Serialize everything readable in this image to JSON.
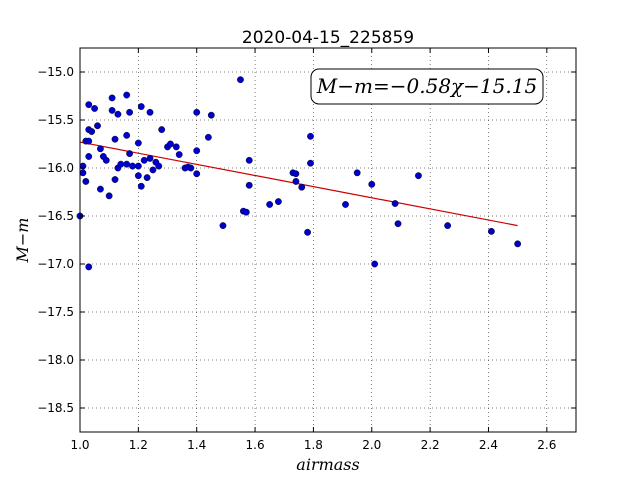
{
  "chart_data": {
    "type": "scatter",
    "title": "2020-04-15_225859",
    "xlabel": "airmass",
    "ylabel": "M−m",
    "annotation": "M−m=−0.58χ−15.15",
    "xlim": [
      1.0,
      2.7
    ],
    "ylim": [
      -18.75,
      -14.75
    ],
    "y_inverted": true,
    "grid": true,
    "x_ticks": [
      1.0,
      1.2,
      1.4,
      1.6,
      1.8,
      2.0,
      2.2,
      2.4,
      2.6
    ],
    "x_tick_labels": [
      "1.0",
      "1.2",
      "1.4",
      "1.6",
      "1.8",
      "2.0",
      "2.2",
      "2.4",
      "2.6"
    ],
    "y_ticks": [
      -15.0,
      -15.5,
      -16.0,
      -16.5,
      -17.0,
      -17.5,
      -18.0,
      -18.5
    ],
    "y_tick_labels": [
      "−15.0",
      "−15.5",
      "−16.0",
      "−16.5",
      "−17.0",
      "−17.5",
      "−18.0",
      "−18.5"
    ],
    "point_color": "#0000cc",
    "fit_color": "#cc0000",
    "fit": {
      "slope": -0.58,
      "intercept": -15.15,
      "x_range": [
        1.0,
        2.5
      ]
    },
    "points": [
      [
        1.0,
        -16.5
      ],
      [
        1.01,
        -16.05
      ],
      [
        1.01,
        -15.98
      ],
      [
        1.02,
        -15.72
      ],
      [
        1.02,
        -16.14
      ],
      [
        1.03,
        -17.03
      ],
      [
        1.03,
        -15.34
      ],
      [
        1.03,
        -15.6
      ],
      [
        1.03,
        -15.72
      ],
      [
        1.03,
        -15.88
      ],
      [
        1.04,
        -15.62
      ],
      [
        1.05,
        -15.38
      ],
      [
        1.06,
        -15.56
      ],
      [
        1.07,
        -15.8
      ],
      [
        1.07,
        -16.22
      ],
      [
        1.08,
        -15.88
      ],
      [
        1.09,
        -15.92
      ],
      [
        1.1,
        -16.29
      ],
      [
        1.11,
        -15.27
      ],
      [
        1.11,
        -15.4
      ],
      [
        1.12,
        -15.7
      ],
      [
        1.12,
        -16.12
      ],
      [
        1.13,
        -15.44
      ],
      [
        1.13,
        -16.0
      ],
      [
        1.14,
        -15.96
      ],
      [
        1.16,
        -15.96
      ],
      [
        1.16,
        -15.66
      ],
      [
        1.16,
        -15.24
      ],
      [
        1.17,
        -15.85
      ],
      [
        1.17,
        -15.42
      ],
      [
        1.18,
        -15.98
      ],
      [
        1.2,
        -15.74
      ],
      [
        1.2,
        -15.98
      ],
      [
        1.2,
        -16.08
      ],
      [
        1.21,
        -15.36
      ],
      [
        1.21,
        -16.19
      ],
      [
        1.22,
        -15.92
      ],
      [
        1.23,
        -16.1
      ],
      [
        1.24,
        -15.42
      ],
      [
        1.24,
        -15.9
      ],
      [
        1.25,
        -16.02
      ],
      [
        1.26,
        -15.94
      ],
      [
        1.27,
        -15.98
      ],
      [
        1.28,
        -15.6
      ],
      [
        1.3,
        -15.78
      ],
      [
        1.31,
        -15.75
      ],
      [
        1.33,
        -15.78
      ],
      [
        1.34,
        -15.86
      ],
      [
        1.36,
        -16.0
      ],
      [
        1.37,
        -15.99
      ],
      [
        1.38,
        -16.0
      ],
      [
        1.4,
        -15.42
      ],
      [
        1.4,
        -15.82
      ],
      [
        1.4,
        -16.06
      ],
      [
        1.44,
        -15.68
      ],
      [
        1.45,
        -15.45
      ],
      [
        1.49,
        -16.6
      ],
      [
        1.55,
        -15.08
      ],
      [
        1.56,
        -16.45
      ],
      [
        1.57,
        -16.46
      ],
      [
        1.58,
        -15.92
      ],
      [
        1.58,
        -16.18
      ],
      [
        1.65,
        -16.38
      ],
      [
        1.68,
        -16.35
      ],
      [
        1.73,
        -16.05
      ],
      [
        1.74,
        -16.06
      ],
      [
        1.74,
        -16.14
      ],
      [
        1.76,
        -16.2
      ],
      [
        1.78,
        -16.67
      ],
      [
        1.79,
        -15.95
      ],
      [
        1.79,
        -15.67
      ],
      [
        1.91,
        -16.38
      ],
      [
        1.95,
        -16.05
      ],
      [
        2.0,
        -16.17
      ],
      [
        2.01,
        -17.0
      ],
      [
        2.08,
        -16.37
      ],
      [
        2.09,
        -16.58
      ],
      [
        2.16,
        -16.08
      ],
      [
        2.26,
        -16.6
      ],
      [
        2.41,
        -16.66
      ],
      [
        2.5,
        -16.79
      ]
    ]
  }
}
